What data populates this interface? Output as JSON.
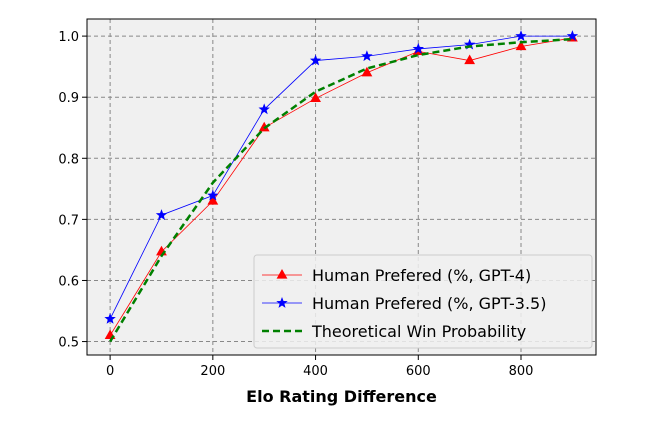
{
  "chart_data": {
    "type": "line",
    "title": "",
    "xlabel": "Elo Rating Difference",
    "ylabel": "",
    "xlim": [
      -45,
      946
    ],
    "ylim": [
      0.478,
      1.028
    ],
    "xticks": [
      0,
      200,
      400,
      600,
      800
    ],
    "yticks": [
      0.5,
      0.6,
      0.7,
      0.8,
      0.9,
      1.0
    ],
    "ytick_labels": [
      "0.5",
      "0.6",
      "0.7",
      "0.8",
      "0.9",
      "1.0"
    ],
    "grid": true,
    "legend_position": "bottom-right",
    "x": [
      0,
      100,
      200,
      300,
      400,
      500,
      600,
      700,
      800,
      900
    ],
    "series": [
      {
        "name": "Human Prefered (%, GPT-4)",
        "color": "#ff0000",
        "marker": "triangle",
        "values": [
          0.51,
          0.647,
          0.73,
          0.85,
          0.898,
          0.94,
          0.975,
          0.96,
          0.983,
          0.997
        ]
      },
      {
        "name": "Human Prefered (%, GPT-3.5)",
        "color": "#0000ff",
        "marker": "star",
        "values": [
          0.537,
          0.707,
          0.739,
          0.88,
          0.96,
          0.967,
          0.979,
          0.986,
          1.0,
          1.0
        ]
      },
      {
        "name": "Theoretical Win Probability",
        "color": "#008000",
        "marker": "none",
        "dashed": true,
        "values": [
          0.5,
          0.64,
          0.76,
          0.849,
          0.909,
          0.947,
          0.969,
          0.983,
          0.99,
          0.995
        ]
      }
    ]
  }
}
